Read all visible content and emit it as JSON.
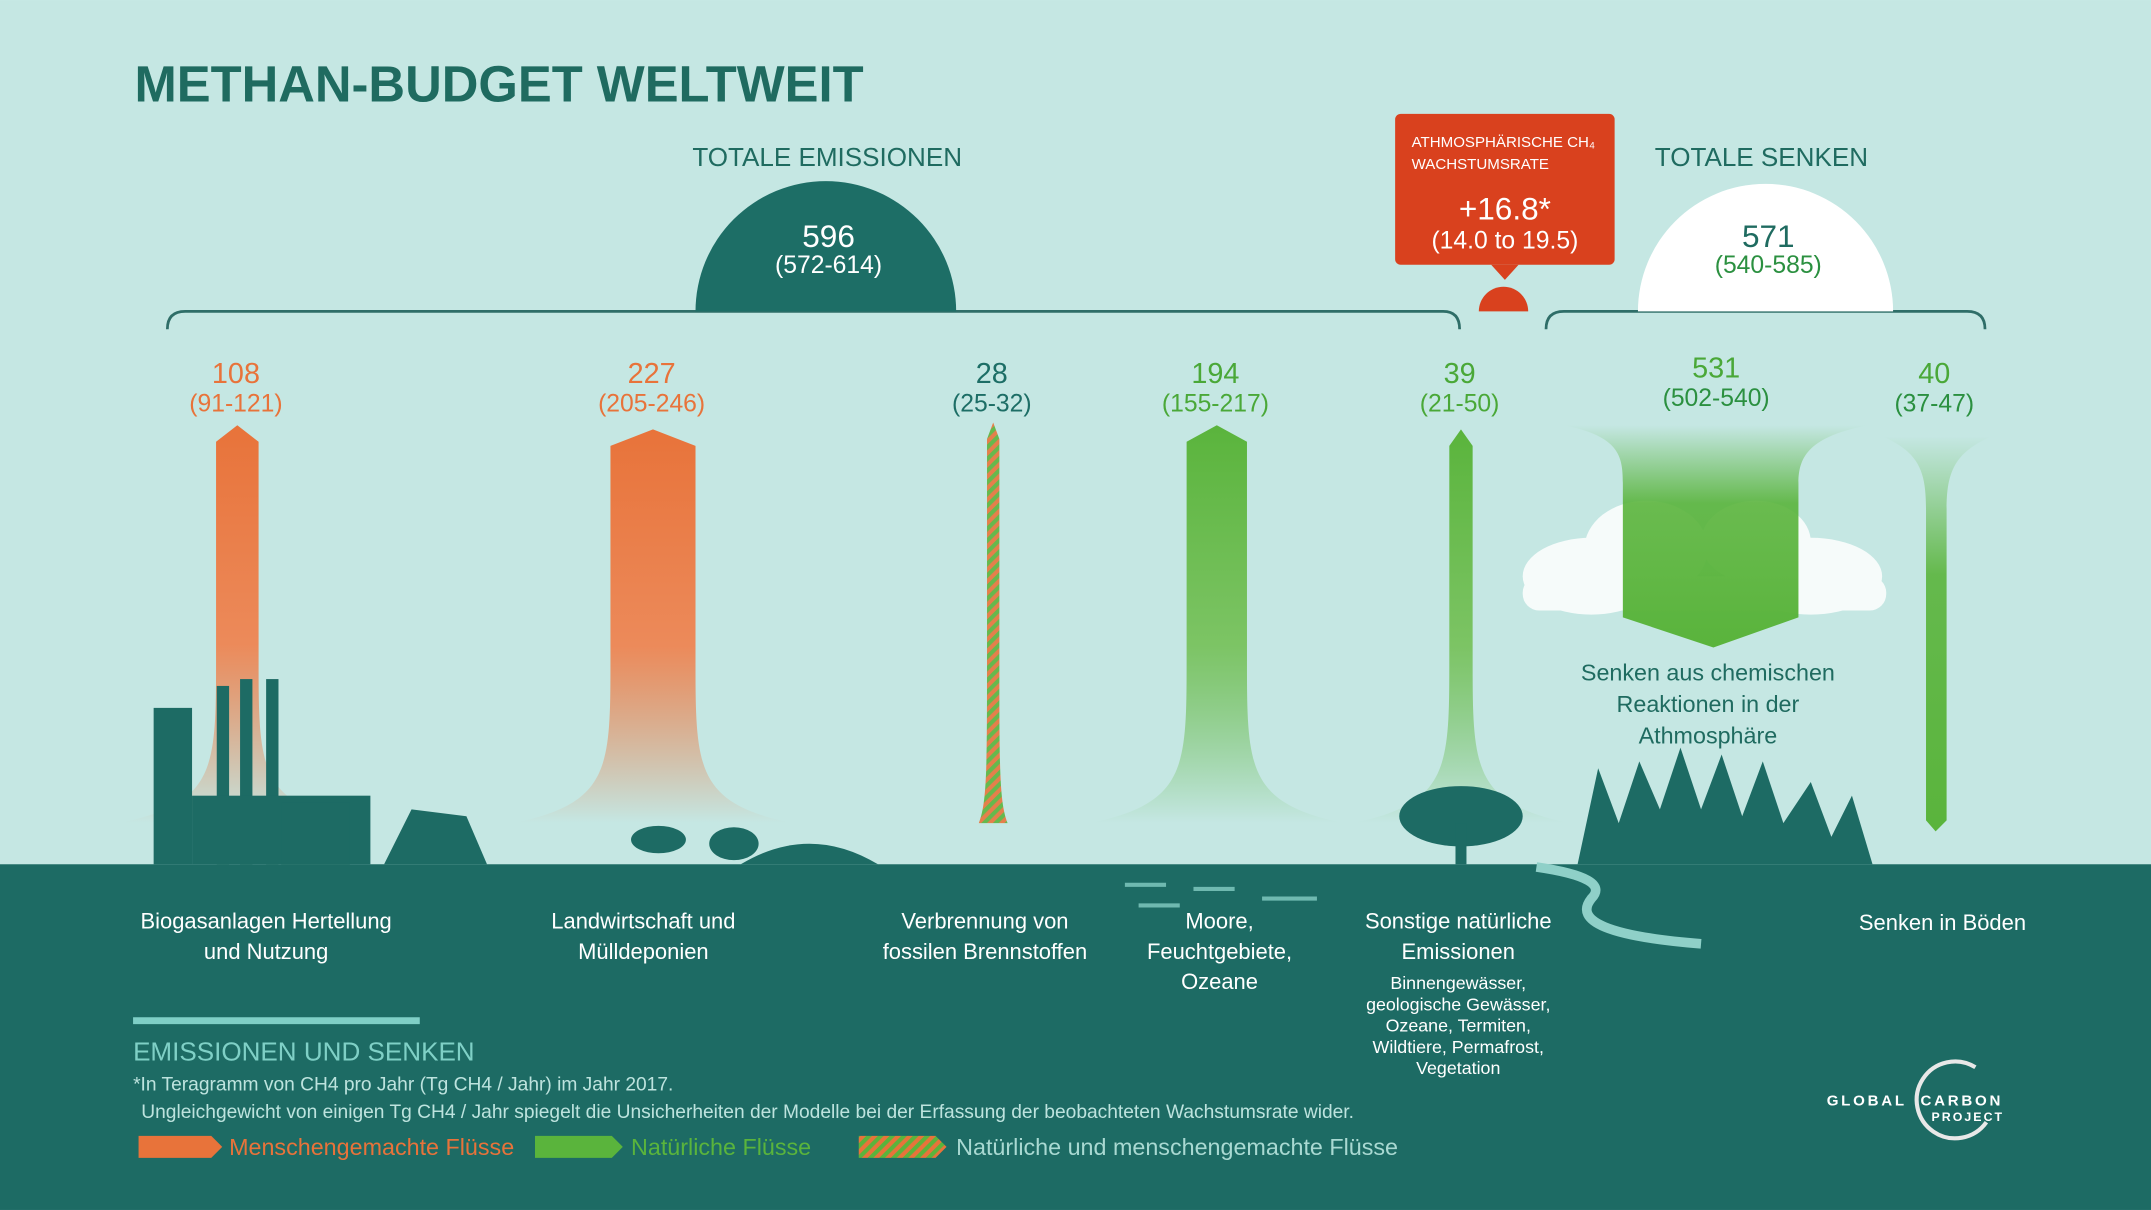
{
  "title": "METHAN-BUDGET WELTWEIT",
  "total_emissions": {
    "label": "TOTALE EMISSIONEN",
    "value": 596,
    "range": "(572-614)"
  },
  "growth_rate": {
    "label_lines": [
      "ATHMOSPHÄRISCHE CH₄",
      "WACHSTUMSRATE"
    ],
    "value": "+16.8*",
    "range": "(14.0 to 19.5)"
  },
  "total_sinks": {
    "label": "TOTALE SENKEN",
    "value": 571,
    "range": "(540-585)"
  },
  "emissions": [
    {
      "value": 108,
      "range": "(91-121)",
      "color": "#e8733a",
      "label_lines": [
        "Biogasanlagen Hertellung",
        "und Nutzung"
      ]
    },
    {
      "value": 227,
      "range": "(205-246)",
      "color": "#e8733a",
      "label_lines": [
        "Landwirtschaft und",
        "Mülldeponien"
      ]
    },
    {
      "value": 28,
      "range": "(25-32)",
      "color": "#1d6e66",
      "label_lines": [
        "Verbrennung von",
        "fossilen Brennstoffen"
      ]
    },
    {
      "value": 194,
      "range": "(155-217)",
      "color": "#4aa838",
      "label_lines": [
        "Moore,",
        "Feuchtgebiete,",
        "Ozeane"
      ]
    },
    {
      "value": 39,
      "range": "(21-50)",
      "color": "#4aa838",
      "label_lines": [
        "Sonstige natürliche",
        "Emissionen"
      ],
      "detail_lines": [
        "Binnengewässer,",
        "geologische Gewässer,",
        "Ozeane, Termiten,",
        "Wildtiere, Permafrost,",
        "Vegetation"
      ]
    }
  ],
  "sinks": [
    {
      "value": 531,
      "range": "(502-540)",
      "color": "#4aa838",
      "label_lines": [
        "Senken aus chemischen",
        "Reaktionen in der",
        "Athmosphäre"
      ]
    },
    {
      "value": 40,
      "range": "(37-47)",
      "color": "#4aa838",
      "label_lines": [
        "Senken in Böden"
      ]
    }
  ],
  "footer": {
    "heading": "EMISSIONEN UND SENKEN",
    "notes": [
      "*In Teragramm von CH4 pro Jahr (Tg CH4 / Jahr) im Jahr 2017.",
      "Ungleichgewicht von einigen Tg CH4 / Jahr spiegelt die Unsicherheiten der Modelle bei der Erfassung der beobachteten Wachstumsrate wider."
    ],
    "legend": [
      "Menschengemachte Flüsse",
      "Natürliche Flüsse",
      "Natürliche und menschengemachte Flüsse"
    ]
  },
  "logo": {
    "words": [
      "GLOBAL",
      "CARBON",
      "PROJECT"
    ]
  }
}
